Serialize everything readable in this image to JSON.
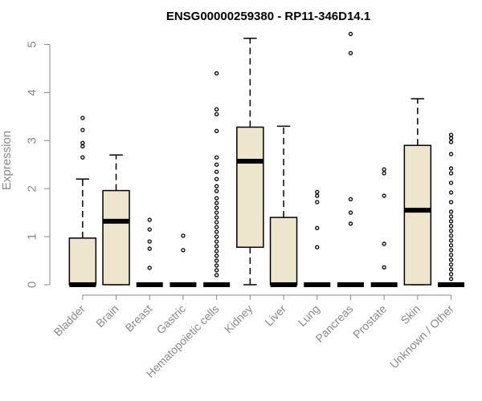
{
  "chart_data": {
    "type": "boxplot",
    "title": "ENSG00000259380 - RP11-346D14.1",
    "ylabel": "Expression",
    "xlabel": "",
    "ylim": [
      0,
      5.25
    ],
    "yticks": [
      0,
      1,
      2,
      3,
      4,
      5
    ],
    "colors": {
      "box_fill": "#ede6cc",
      "stroke": "#000000",
      "axis": "#888888",
      "outlier": "#000000"
    },
    "categories": [
      "Bladder",
      "Brain",
      "Breast",
      "Gastric",
      "Hematopoietic cells",
      "Kidney",
      "Liver",
      "Lung",
      "Pancreas",
      "Prostate",
      "Skin",
      "Unknown / Other"
    ],
    "boxes": [
      {
        "q1": 0,
        "median": 0,
        "q3": 0.97,
        "whisker_low": 0,
        "whisker_high": 2.2,
        "outliers": [
          2.65,
          2.88,
          2.95,
          3.22,
          3.47
        ]
      },
      {
        "q1": 0,
        "median": 1.32,
        "q3": 1.96,
        "whisker_low": 0,
        "whisker_high": 2.7,
        "outliers": []
      },
      {
        "q1": 0,
        "median": 0,
        "q3": 0,
        "whisker_low": 0,
        "whisker_high": 0,
        "outliers": [
          0.35,
          0.75,
          0.9,
          1.15,
          1.35
        ]
      },
      {
        "q1": 0,
        "median": 0,
        "q3": 0,
        "whisker_low": 0,
        "whisker_high": 0,
        "outliers": [
          0.72,
          1.02
        ]
      },
      {
        "q1": 0,
        "median": 0,
        "q3": 0,
        "whisker_low": 0,
        "whisker_high": 0,
        "outliers": [
          0.2,
          0.3,
          0.4,
          0.5,
          0.6,
          0.7,
          0.8,
          0.9,
          1.0,
          1.1,
          1.2,
          1.3,
          1.4,
          1.5,
          1.6,
          1.7,
          1.8,
          1.95,
          2.05,
          2.2,
          2.35,
          2.5,
          2.65,
          3.2,
          3.55,
          3.65,
          4.4
        ]
      },
      {
        "q1": 0.78,
        "median": 2.57,
        "q3": 3.28,
        "whisker_low": 0,
        "whisker_high": 5.13,
        "outliers": []
      },
      {
        "q1": 0,
        "median": 0,
        "q3": 1.4,
        "whisker_low": 0,
        "whisker_high": 3.3,
        "outliers": []
      },
      {
        "q1": 0,
        "median": 0,
        "q3": 0,
        "whisker_low": 0,
        "whisker_high": 0,
        "outliers": [
          0.78,
          1.18,
          1.72,
          1.85,
          1.93
        ]
      },
      {
        "q1": 0,
        "median": 0,
        "q3": 0,
        "whisker_low": 0,
        "whisker_high": 0,
        "outliers": [
          1.27,
          1.5,
          1.78,
          4.82,
          5.22
        ]
      },
      {
        "q1": 0,
        "median": 0,
        "q3": 0,
        "whisker_low": 0,
        "whisker_high": 0,
        "outliers": [
          0.36,
          0.85,
          1.85,
          2.32,
          2.4
        ]
      },
      {
        "q1": 0,
        "median": 1.55,
        "q3": 2.9,
        "whisker_low": 0,
        "whisker_high": 3.87,
        "outliers": []
      },
      {
        "q1": 0,
        "median": 0,
        "q3": 0,
        "whisker_low": 0,
        "whisker_high": 0,
        "outliers": [
          0.12,
          0.22,
          0.32,
          0.42,
          0.52,
          0.62,
          0.72,
          0.82,
          0.92,
          1.02,
          1.12,
          1.22,
          1.32,
          1.42,
          1.52,
          1.72,
          1.92,
          2.12,
          2.32,
          2.42,
          2.72,
          2.97,
          3.05,
          3.12
        ]
      }
    ]
  }
}
